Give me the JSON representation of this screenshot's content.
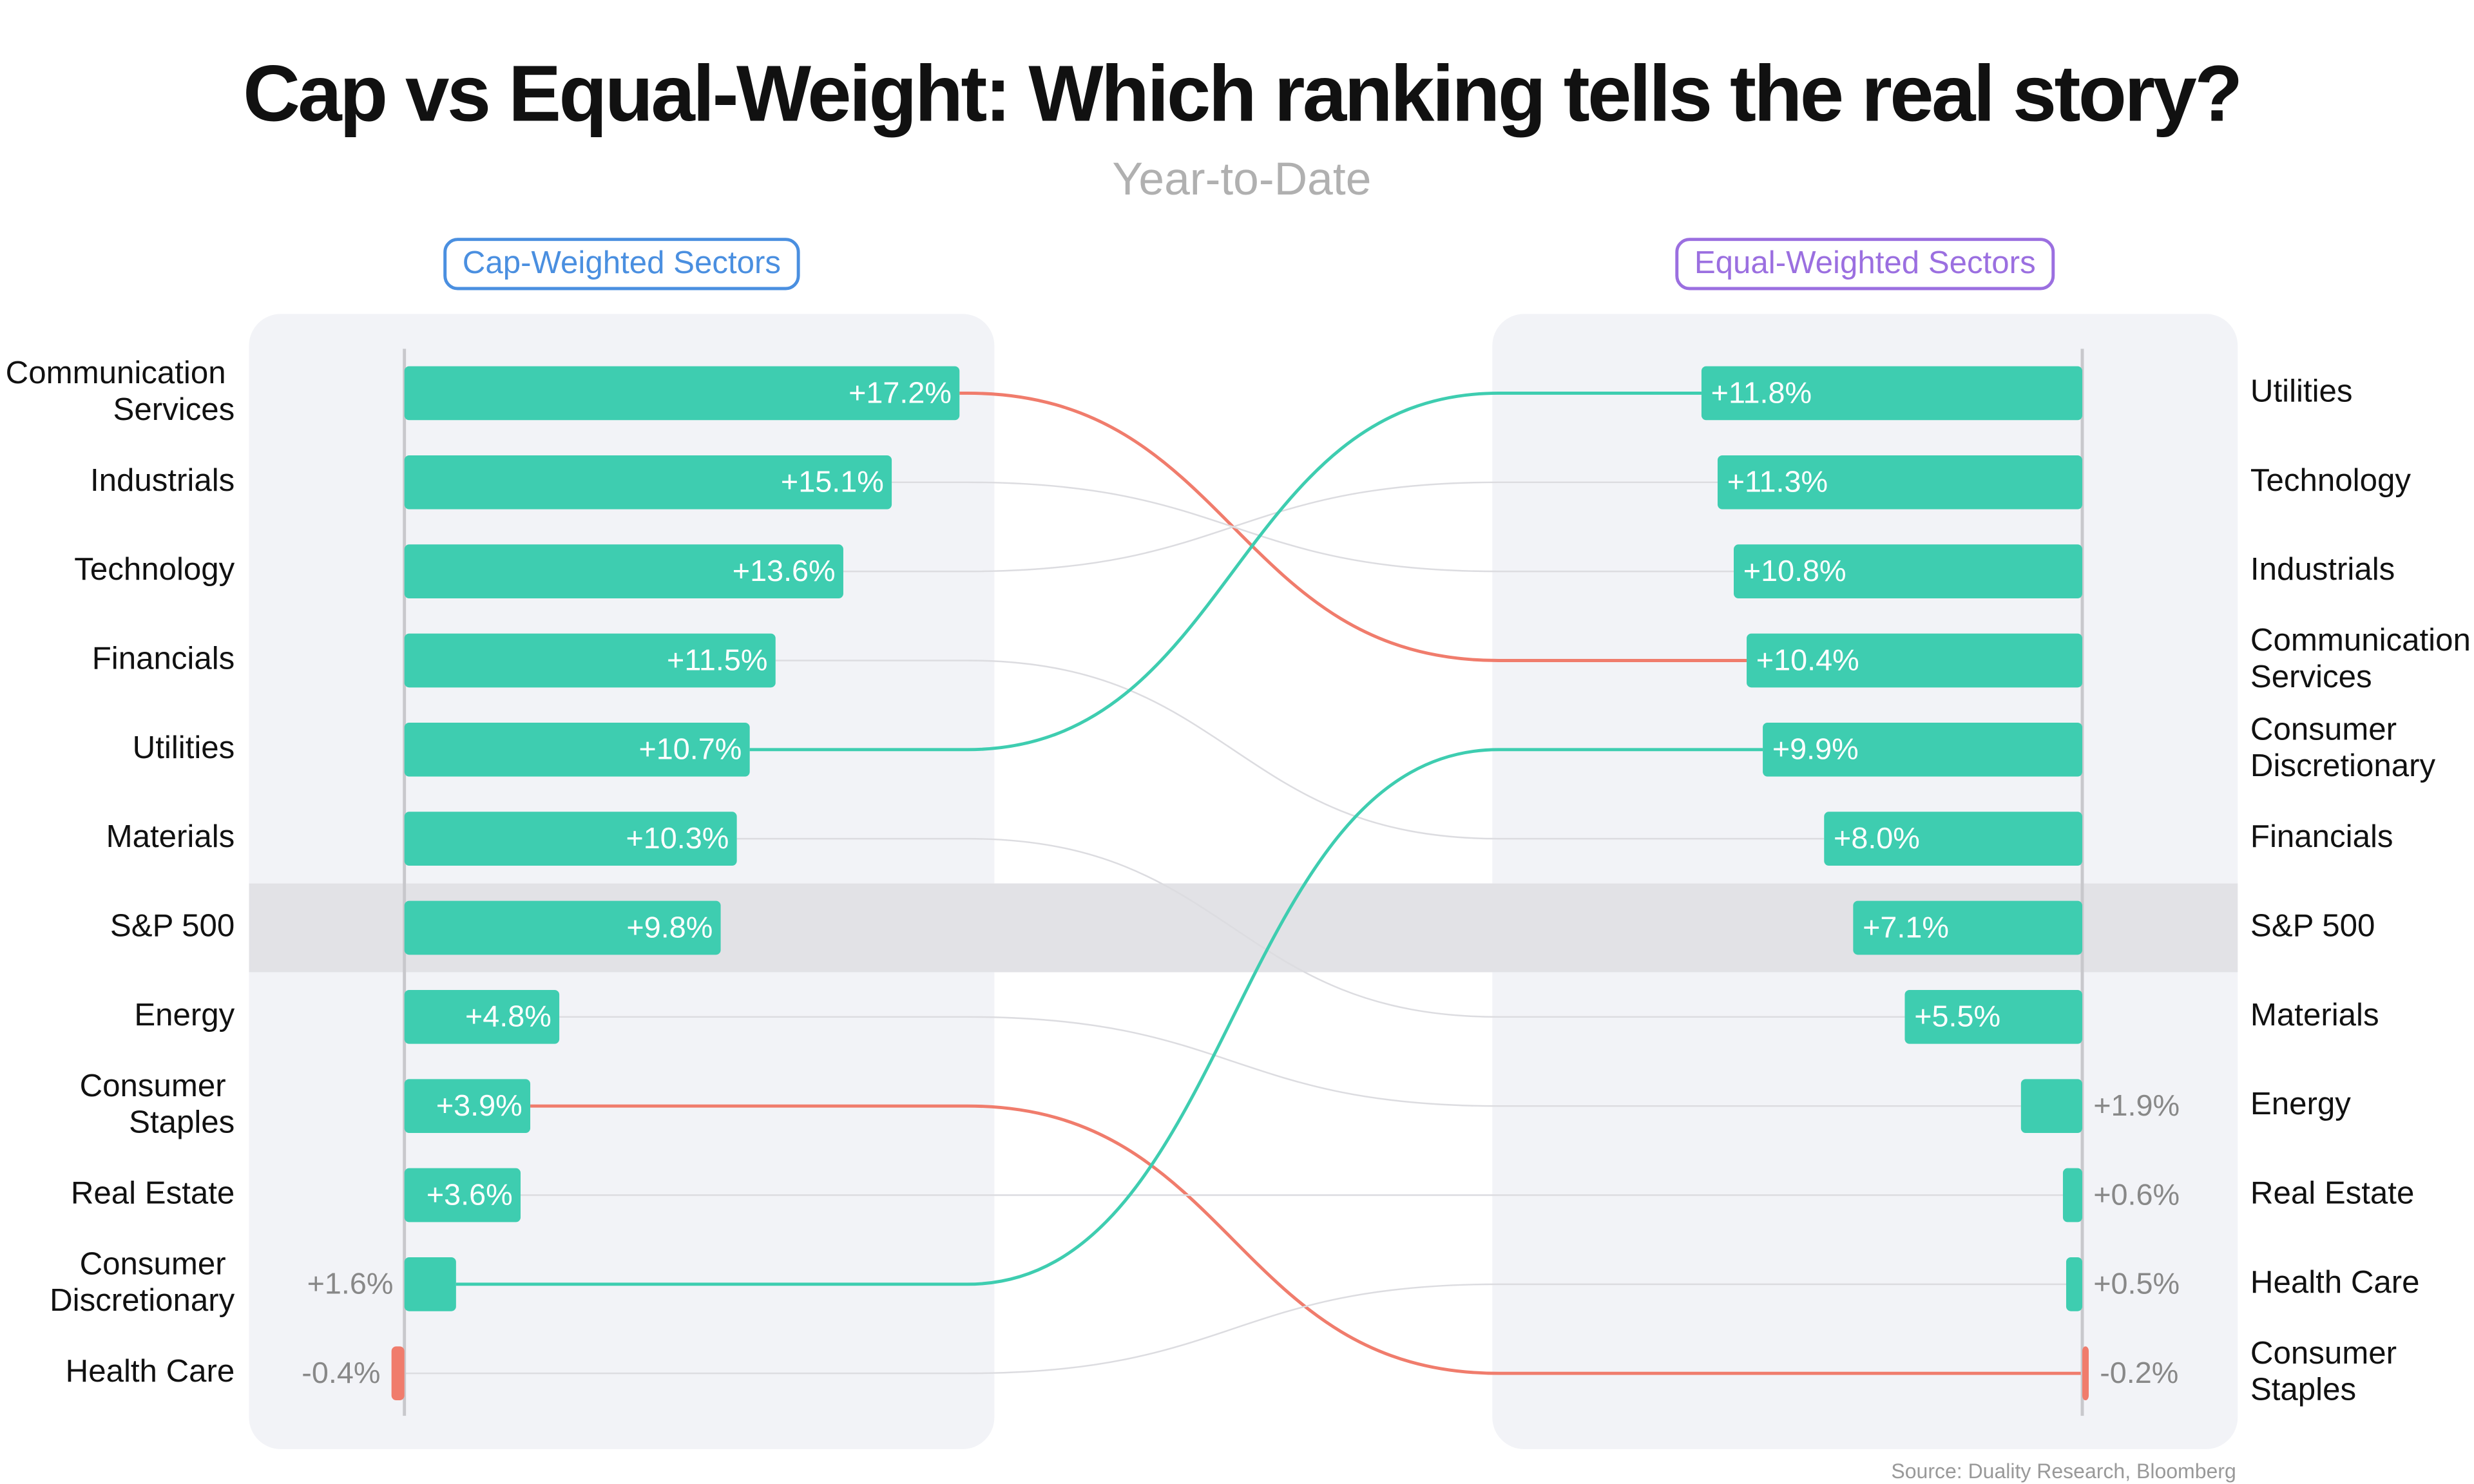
{
  "title": "Cap vs Equal-Weight: Which ranking tells the real story?",
  "subtitle": "Year-to-Date",
  "source": "Source: Duality Research, Bloomberg",
  "highlight": "S&P 500",
  "chart_data": [
    {
      "type": "bar",
      "panel_title": "Cap-Weighted Sectors",
      "panel_color": "#4a8fe0",
      "categories": [
        "Communication Services",
        "Industrials",
        "Technology",
        "Financials",
        "Utilities",
        "Materials",
        "S&P 500",
        "Energy",
        "Consumer Staples",
        "Real Estate",
        "Consumer Discretionary",
        "Health Care"
      ],
      "values": [
        17.2,
        15.1,
        13.6,
        11.5,
        10.7,
        10.3,
        9.8,
        4.8,
        3.9,
        3.6,
        1.6,
        -0.4
      ],
      "value_labels": [
        "+17.2%",
        "+15.1%",
        "+13.6%",
        "+11.5%",
        "+10.7%",
        "+10.3%",
        "+9.8%",
        "+4.8%",
        "+3.9%",
        "+3.6%",
        "+1.6%",
        "-0.4%"
      ],
      "color": "#3ecdb0",
      "negative_color": "#f07c6c"
    },
    {
      "type": "bar",
      "panel_title": "Equal-Weighted Sectors",
      "panel_color": "#9b6fe0",
      "categories": [
        "Utilities",
        "Technology",
        "Industrials",
        "Communication Services",
        "Consumer Discretionary",
        "Financials",
        "S&P 500",
        "Materials",
        "Energy",
        "Real Estate",
        "Health Care",
        "Consumer Staples"
      ],
      "values": [
        11.8,
        11.3,
        10.8,
        10.4,
        9.9,
        8.0,
        7.1,
        5.5,
        1.9,
        0.6,
        0.5,
        -0.2
      ],
      "value_labels": [
        "+11.8%",
        "+11.3%",
        "+10.8%",
        "+10.4%",
        "+9.9%",
        "+8.0%",
        "+7.1%",
        "+5.5%",
        "+1.9%",
        "+0.6%",
        "+0.5%",
        "-0.2%"
      ],
      "color": "#3ecdb0",
      "negative_color": "#f07c6c"
    }
  ]
}
